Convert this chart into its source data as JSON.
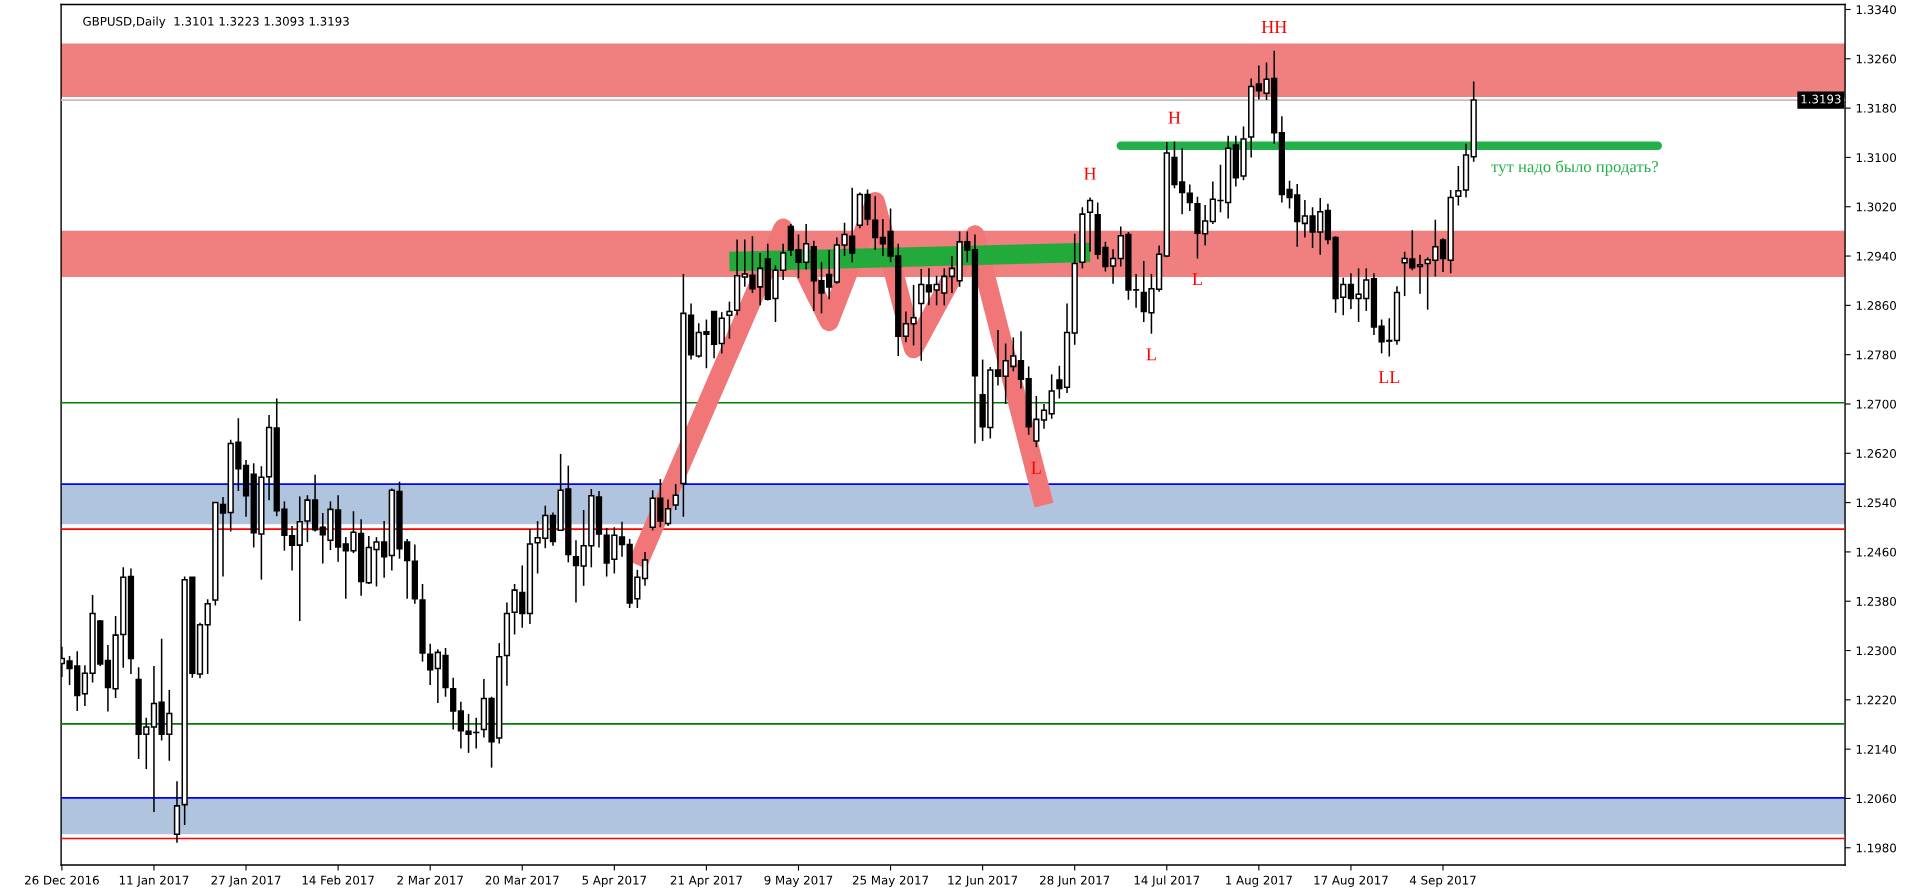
{
  "chart_data": {
    "type": "candlestick",
    "title": "GBPUSD,Daily  1.3101 1.3223 1.3093 1.3193",
    "categories": [
      "26 Dec 2016",
      null,
      null,
      null,
      null,
      null,
      null,
      null,
      null,
      null,
      null,
      null,
      "11 Jan 2017",
      null,
      null,
      null,
      null,
      null,
      null,
      null,
      null,
      null,
      null,
      null,
      "27 Jan 2017",
      null,
      null,
      null,
      null,
      null,
      null,
      null,
      null,
      null,
      null,
      null,
      "14 Feb 2017",
      null,
      null,
      null,
      null,
      null,
      null,
      null,
      null,
      null,
      null,
      null,
      "2 Mar 2017",
      null,
      null,
      null,
      null,
      null,
      null,
      null,
      null,
      null,
      null,
      null,
      "20 Mar 2017",
      null,
      null,
      null,
      null,
      null,
      null,
      null,
      null,
      null,
      null,
      null,
      "5 Apr 2017",
      null,
      null,
      null,
      null,
      null,
      null,
      null,
      null,
      null,
      null,
      null,
      "21 Apr 2017",
      null,
      null,
      null,
      null,
      null,
      null,
      null,
      null,
      null,
      null,
      null,
      "9 May 2017",
      null,
      null,
      null,
      null,
      null,
      null,
      null,
      null,
      null,
      null,
      null,
      "25 May 2017",
      null,
      null,
      null,
      null,
      null,
      null,
      null,
      null,
      null,
      null,
      null,
      "12 Jun 2017",
      null,
      null,
      null,
      null,
      null,
      null,
      null,
      null,
      null,
      null,
      null,
      "28 Jun 2017",
      null,
      null,
      null,
      null,
      null,
      null,
      null,
      null,
      null,
      null,
      null,
      "14 Jul 2017",
      null,
      null,
      null,
      null,
      null,
      null,
      null,
      null,
      null,
      null,
      null,
      "1 Aug 2017",
      null,
      null,
      null,
      null,
      null,
      null,
      null,
      null,
      null,
      null,
      null,
      "17 Aug 2017",
      null,
      null,
      null,
      null,
      null,
      null,
      null,
      null,
      null,
      null,
      null,
      "4 Sep 2017",
      null,
      null,
      null,
      null,
      null,
      null,
      null,
      null,
      null,
      null,
      null,
      null,
      null,
      null,
      null,
      null,
      null,
      null,
      null,
      null,
      null,
      null,
      null,
      null,
      null,
      null,
      null,
      null,
      null,
      null,
      null,
      null,
      null,
      null,
      null,
      null,
      null,
      null,
      null,
      null,
      null,
      null,
      null,
      null,
      null,
      null,
      null,
      null,
      null,
      null,
      null,
      null
    ],
    "ohlc": [
      [
        1.2279,
        1.2306,
        1.2257,
        1.2287
      ],
      [
        1.2283,
        1.2291,
        1.2244,
        1.2271
      ],
      [
        1.2275,
        1.2299,
        1.2202,
        1.2227
      ],
      [
        1.223,
        1.2276,
        1.221,
        1.2263
      ],
      [
        1.2263,
        1.239,
        1.2248,
        1.236
      ],
      [
        1.2348,
        1.2349,
        1.2275,
        1.2278
      ],
      [
        1.2284,
        1.2309,
        1.2201,
        1.224
      ],
      [
        1.2238,
        1.2356,
        1.2223,
        1.2325
      ],
      [
        1.2326,
        1.2435,
        1.2272,
        1.2419
      ],
      [
        1.242,
        1.2433,
        1.2262,
        1.2287
      ],
      [
        1.2253,
        1.2273,
        1.2124,
        1.2164
      ],
      [
        1.2164,
        1.2191,
        1.2108,
        1.2176
      ],
      [
        1.2176,
        1.2275,
        1.2038,
        1.2214
      ],
      [
        1.2216,
        1.2319,
        1.2154,
        1.2164
      ],
      [
        1.2164,
        1.2236,
        1.2121,
        1.2198
      ],
      [
        1.2002,
        1.2088,
        1.1988,
        1.2048
      ],
      [
        1.205,
        1.242,
        1.2017,
        1.2415
      ],
      [
        1.2419,
        1.2419,
        1.2256,
        1.2263
      ],
      [
        1.2262,
        1.2345,
        1.2255,
        1.2342
      ],
      [
        1.2342,
        1.2383,
        1.2262,
        1.2376
      ],
      [
        1.2382,
        1.254,
        1.2373,
        1.254
      ],
      [
        1.2537,
        1.2549,
        1.242,
        1.2523
      ],
      [
        1.2524,
        1.2642,
        1.2493,
        1.2636
      ],
      [
        1.2638,
        1.2677,
        1.2559,
        1.2595
      ],
      [
        1.26,
        1.2609,
        1.2517,
        1.2551
      ],
      [
        1.2586,
        1.2604,
        1.2467,
        1.2491
      ],
      [
        1.2489,
        1.2599,
        1.2415,
        1.2581
      ],
      [
        1.2582,
        1.2682,
        1.2544,
        1.2662
      ],
      [
        1.2661,
        1.2709,
        1.2518,
        1.2527
      ],
      [
        1.2529,
        1.2542,
        1.2462,
        1.2487
      ],
      [
        1.2486,
        1.2502,
        1.243,
        1.2471
      ],
      [
        1.2471,
        1.255,
        1.2348,
        1.2509
      ],
      [
        1.251,
        1.2552,
        1.2476,
        1.2544
      ],
      [
        1.2544,
        1.2585,
        1.2493,
        1.2496
      ],
      [
        1.25,
        1.2523,
        1.2441,
        1.2488
      ],
      [
        1.2479,
        1.2542,
        1.2463,
        1.2529
      ],
      [
        1.2528,
        1.2552,
        1.2444,
        1.2468
      ],
      [
        1.2473,
        1.2484,
        1.2384,
        1.2462
      ],
      [
        1.2462,
        1.2526,
        1.2458,
        1.2492
      ],
      [
        1.249,
        1.2513,
        1.2389,
        1.2412
      ],
      [
        1.241,
        1.2486,
        1.2408,
        1.2467
      ],
      [
        1.2464,
        1.2484,
        1.2404,
        1.2476
      ],
      [
        1.2476,
        1.251,
        1.2418,
        1.2452
      ],
      [
        1.2454,
        1.2563,
        1.243,
        1.256
      ],
      [
        1.2558,
        1.2574,
        1.2449,
        1.2465
      ],
      [
        1.2476,
        1.2481,
        1.2384,
        1.2446
      ],
      [
        1.2445,
        1.2472,
        1.2376,
        1.2384
      ],
      [
        1.2382,
        1.2408,
        1.2282,
        1.2296
      ],
      [
        1.2294,
        1.2311,
        1.2244,
        1.2269
      ],
      [
        1.2271,
        1.2302,
        1.2215,
        1.2297
      ],
      [
        1.2292,
        1.2304,
        1.2225,
        1.224
      ],
      [
        1.2238,
        1.2256,
        1.2172,
        1.2202
      ],
      [
        1.2202,
        1.2217,
        1.2141,
        1.217
      ],
      [
        1.2169,
        1.2197,
        1.2134,
        1.2164
      ],
      [
        1.2167,
        1.2191,
        1.2141,
        1.2167
      ],
      [
        1.2172,
        1.2254,
        1.2159,
        1.2222
      ],
      [
        1.2222,
        1.2225,
        1.211,
        1.2152
      ],
      [
        1.2158,
        1.2312,
        1.2149,
        1.229
      ],
      [
        1.2292,
        1.2378,
        1.2243,
        1.236
      ],
      [
        1.2362,
        1.2408,
        1.2326,
        1.2398
      ],
      [
        1.2394,
        1.2438,
        1.2337,
        1.236
      ],
      [
        1.236,
        1.2497,
        1.2343,
        1.2473
      ],
      [
        1.2475,
        1.251,
        1.2425,
        1.2483
      ],
      [
        1.2482,
        1.2535,
        1.2466,
        1.2519
      ],
      [
        1.2519,
        1.2524,
        1.247,
        1.2477
      ],
      [
        1.2495,
        1.2619,
        1.2494,
        1.256
      ],
      [
        1.2562,
        1.26,
        1.2443,
        1.2456
      ],
      [
        1.2452,
        1.2479,
        1.2378,
        1.2438
      ],
      [
        1.2437,
        1.2528,
        1.2405,
        1.247
      ],
      [
        1.247,
        1.2562,
        1.2435,
        1.2551
      ],
      [
        1.2549,
        1.2559,
        1.2467,
        1.2489
      ],
      [
        1.2487,
        1.2499,
        1.242,
        1.2442
      ],
      [
        1.2448,
        1.25,
        1.2425,
        1.2487
      ],
      [
        1.2484,
        1.2509,
        1.2452,
        1.2472
      ],
      [
        1.2472,
        1.2481,
        1.2369,
        1.2377
      ],
      [
        1.2384,
        1.2431,
        1.2369,
        1.2419
      ],
      [
        1.2417,
        1.246,
        1.2405,
        1.2447
      ],
      [
        1.25,
        1.256,
        1.2495,
        1.2547
      ],
      [
        1.2547,
        1.2578,
        1.25,
        1.251
      ],
      [
        1.2506,
        1.2545,
        1.2502,
        1.253
      ],
      [
        1.2536,
        1.257,
        1.2528,
        1.2552
      ],
      [
        1.2571,
        1.2911,
        1.2517,
        1.2847
      ],
      [
        1.2844,
        1.2863,
        1.2772,
        1.278
      ],
      [
        1.2778,
        1.2831,
        1.2775,
        1.2816
      ],
      [
        1.2817,
        1.2837,
        1.2758,
        1.2813
      ],
      [
        1.285,
        1.285,
        1.2774,
        1.2797
      ],
      [
        1.2798,
        1.2849,
        1.2782,
        1.2839
      ],
      [
        1.2844,
        1.2866,
        1.2806,
        1.285
      ],
      [
        1.2852,
        1.2967,
        1.2844,
        1.2908
      ],
      [
        1.2906,
        1.2967,
        1.289,
        1.2911
      ],
      [
        1.2909,
        1.2972,
        1.288,
        1.2887
      ],
      [
        1.289,
        1.2945,
        1.286,
        1.292
      ],
      [
        1.2935,
        1.296,
        1.2868,
        1.287
      ],
      [
        1.2871,
        1.2925,
        1.2833,
        1.2917
      ],
      [
        1.2917,
        1.296,
        1.2901,
        1.2945
      ],
      [
        1.2988,
        1.2992,
        1.294,
        1.295
      ],
      [
        1.295,
        1.2975,
        1.2904,
        1.293
      ],
      [
        1.293,
        1.2992,
        1.2918,
        1.296
      ],
      [
        1.2955,
        1.2965,
        1.2851,
        1.29
      ],
      [
        1.29,
        1.293,
        1.2847,
        1.288
      ],
      [
        1.291,
        1.295,
        1.287,
        1.289
      ],
      [
        1.2898,
        1.297,
        1.2895,
        1.2958
      ],
      [
        1.2958,
        1.2994,
        1.294,
        1.2975
      ],
      [
        1.2972,
        1.3051,
        1.293,
        1.2945
      ],
      [
        1.299,
        1.3043,
        1.2985,
        1.304
      ],
      [
        1.304,
        1.3048,
        1.299,
        1.3
      ],
      [
        1.2998,
        1.3037,
        1.295,
        1.297
      ],
      [
        1.297,
        1.3,
        1.294,
        1.296
      ],
      [
        1.298,
        1.3017,
        1.293,
        1.294
      ],
      [
        1.294,
        1.296,
        1.2778,
        1.281
      ],
      [
        1.281,
        1.285,
        1.28,
        1.283
      ],
      [
        1.283,
        1.2893,
        1.2795,
        1.284
      ],
      [
        1.2863,
        1.2919,
        1.277,
        1.2894
      ],
      [
        1.2893,
        1.292,
        1.286,
        1.2882
      ],
      [
        1.2885,
        1.2908,
        1.286,
        1.2894
      ],
      [
        1.288,
        1.292,
        1.286,
        1.2907
      ],
      [
        1.2907,
        1.294,
        1.288,
        1.292
      ],
      [
        1.29,
        1.298,
        1.289,
        1.2963
      ],
      [
        1.2963,
        1.298,
        1.293,
        1.295
      ],
      [
        1.295,
        1.2975,
        1.2636,
        1.2746
      ],
      [
        1.2715,
        1.2772,
        1.264,
        1.2663
      ],
      [
        1.2662,
        1.276,
        1.2644,
        1.2755
      ],
      [
        1.2755,
        1.282,
        1.273,
        1.2745
      ],
      [
        1.2745,
        1.2798,
        1.27,
        1.277
      ],
      [
        1.2761,
        1.2808,
        1.2753,
        1.2778
      ],
      [
        1.277,
        1.2818,
        1.2725,
        1.274
      ],
      [
        1.2741,
        1.2761,
        1.265,
        1.2663
      ],
      [
        1.264,
        1.2713,
        1.263,
        1.2675
      ],
      [
        1.2674,
        1.27,
        1.266,
        1.269
      ],
      [
        1.2684,
        1.2748,
        1.2676,
        1.2721
      ],
      [
        1.2739,
        1.2762,
        1.2709,
        1.2725
      ],
      [
        1.2727,
        1.2863,
        1.2718,
        1.2816
      ],
      [
        1.2815,
        1.2976,
        1.2796,
        1.2928
      ],
      [
        1.293,
        1.3019,
        1.292,
        1.3008
      ],
      [
        1.3011,
        1.3035,
        1.2947,
        1.303
      ],
      [
        1.3007,
        1.3027,
        1.2935,
        1.2943
      ],
      [
        1.2954,
        1.2963,
        1.2915,
        1.2923
      ],
      [
        1.2924,
        1.2951,
        1.2895,
        1.2936
      ],
      [
        1.2936,
        1.2988,
        1.2923,
        1.2973
      ],
      [
        1.2975,
        1.2979,
        1.2869,
        1.2885
      ],
      [
        1.2885,
        1.2911,
        1.2856,
        1.2885
      ],
      [
        1.2881,
        1.2932,
        1.2833,
        1.285
      ],
      [
        1.2848,
        1.2911,
        1.2814,
        1.2887
      ],
      [
        1.2886,
        1.2957,
        1.2882,
        1.2943
      ],
      [
        1.294,
        1.3125,
        1.2938,
        1.3107
      ],
      [
        1.31,
        1.3126,
        1.305,
        1.3056
      ],
      [
        1.306,
        1.3115,
        1.3008,
        1.3043
      ],
      [
        1.3042,
        1.3056,
        1.3013,
        1.3027
      ],
      [
        1.3025,
        1.3036,
        1.2936,
        1.2977
      ],
      [
        1.2976,
        1.3023,
        1.2957,
        1.2997
      ],
      [
        1.2996,
        1.3061,
        1.2992,
        1.3032
      ],
      [
        1.303,
        1.3088,
        1.3011,
        1.303
      ],
      [
        1.3027,
        1.3135,
        1.3001,
        1.3115
      ],
      [
        1.312,
        1.3135,
        1.3053,
        1.3067
      ],
      [
        1.307,
        1.315,
        1.3063,
        1.313
      ],
      [
        1.3133,
        1.3228,
        1.31,
        1.3215
      ],
      [
        1.3219,
        1.3249,
        1.3194,
        1.3208
      ],
      [
        1.3204,
        1.3254,
        1.3193,
        1.3227
      ],
      [
        1.3228,
        1.3273,
        1.3122,
        1.314
      ],
      [
        1.314,
        1.3167,
        1.3027,
        1.304
      ],
      [
        1.3048,
        1.3062,
        1.3017,
        1.3035
      ],
      [
        1.3039,
        1.3057,
        1.2955,
        1.2996
      ],
      [
        1.2993,
        1.3031,
        1.297,
        1.3005
      ],
      [
        1.3005,
        1.3019,
        1.2953,
        1.2979
      ],
      [
        1.2979,
        1.3034,
        1.2942,
        1.3012
      ],
      [
        1.3014,
        1.3025,
        1.2959,
        1.2967
      ],
      [
        1.297,
        1.2972,
        1.2848,
        1.2871
      ],
      [
        1.2873,
        1.2905,
        1.2844,
        1.2894
      ],
      [
        1.2894,
        1.2912,
        1.2854,
        1.2871
      ],
      [
        1.2871,
        1.292,
        1.2833,
        1.2878
      ],
      [
        1.2871,
        1.292,
        1.2851,
        1.2901
      ],
      [
        1.2903,
        1.2912,
        1.2812,
        1.2825
      ],
      [
        1.2826,
        1.2837,
        1.2782,
        1.2801
      ],
      [
        1.2802,
        1.2839,
        1.2777,
        1.2803
      ],
      [
        1.2803,
        1.2891,
        1.2796,
        1.2881
      ],
      [
        1.2929,
        1.2947,
        1.2875,
        1.2936
      ],
      [
        1.2935,
        1.2982,
        1.2917,
        1.2921
      ],
      [
        1.2923,
        1.2942,
        1.2879,
        1.2926
      ],
      [
        1.2928,
        1.2938,
        1.2853,
        1.2934
      ],
      [
        1.2933,
        1.2999,
        1.2907,
        1.2955
      ],
      [
        1.2966,
        1.2969,
        1.2914,
        1.2936
      ],
      [
        1.2933,
        1.3047,
        1.2912,
        1.3035
      ],
      [
        1.3037,
        1.3086,
        1.3022,
        1.3046
      ],
      [
        1.3047,
        1.3122,
        1.3035,
        1.3104
      ],
      [
        1.3101,
        1.3223,
        1.3093,
        1.3193
      ],
      null,
      null,
      null,
      null,
      null,
      null,
      null,
      null,
      null,
      null,
      null,
      null,
      null,
      null,
      null,
      null,
      null,
      null,
      null,
      null,
      null,
      null,
      null,
      null,
      null,
      null,
      null,
      null,
      null,
      null,
      null,
      null,
      null,
      null,
      null,
      null,
      null,
      null,
      null,
      null,
      null,
      null,
      null,
      null,
      null,
      null,
      null,
      null
    ],
    "color": "#000000",
    "bands": [
      {
        "axis": "y",
        "from": 1.3198,
        "to": 1.3285,
        "color": "#f08080"
      },
      {
        "axis": "y",
        "from": 1.2906,
        "to": 1.2981,
        "color": "#f08080"
      },
      {
        "axis": "y",
        "from": 1.2505,
        "to": 1.257,
        "color": "#b0c4de"
      },
      {
        "axis": "y",
        "from": 1.2002,
        "to": 1.2061,
        "color": "#b0c4de"
      }
    ],
    "series": [
      {
        "type": "line",
        "color": "#f07678",
        "values": [
          null,
          null,
          null,
          null,
          null,
          null,
          null,
          null,
          null,
          null,
          null,
          null,
          null,
          null,
          null,
          null,
          null,
          null,
          null,
          null,
          null,
          null,
          null,
          null,
          null,
          null,
          null,
          null,
          null,
          null,
          null,
          null,
          null,
          null,
          null,
          null,
          null,
          null,
          null,
          null,
          null,
          null,
          null,
          null,
          null,
          null,
          null,
          null,
          null,
          null,
          null,
          null,
          null,
          null,
          null,
          null,
          null,
          null,
          null,
          null,
          null,
          null,
          null,
          null,
          null,
          null,
          null,
          null,
          null,
          null,
          null,
          null,
          null,
          null,
          null,
          1.2439,
          null,
          null,
          null,
          null,
          null,
          null,
          null,
          null,
          null,
          null,
          null,
          null,
          null,
          null,
          null,
          null,
          null,
          null,
          1.2985,
          null,
          null,
          null,
          null,
          null,
          1.2834,
          null,
          null,
          null,
          null,
          null,
          1.3028,
          null,
          null,
          null,
          null,
          1.279,
          null,
          null,
          null,
          null,
          null,
          null,
          null,
          1.2974,
          null,
          null,
          null,
          null,
          null,
          null,
          null,
          null,
          1.2536,
          null,
          null,
          null,
          null,
          null,
          null,
          null,
          null,
          null,
          null,
          null,
          null,
          null,
          null,
          null,
          null,
          null,
          null,
          null,
          null,
          null,
          null,
          null,
          null,
          null,
          null,
          null,
          null,
          null,
          null,
          null,
          null,
          null,
          null,
          null,
          null,
          null,
          null,
          null,
          null,
          null,
          null,
          null,
          null,
          null,
          null,
          null,
          null,
          null,
          null,
          null,
          null,
          null,
          null,
          null,
          null,
          null,
          null,
          null,
          null,
          null,
          null,
          null,
          null,
          null,
          null,
          null,
          null,
          null,
          null,
          null,
          null,
          null,
          null,
          null,
          null,
          null,
          null,
          null,
          null,
          null,
          null,
          null,
          null,
          null,
          null,
          null,
          null,
          null,
          null,
          null,
          null,
          null,
          null,
          null,
          null,
          null,
          null,
          null,
          null,
          null,
          null,
          null,
          null
        ]
      },
      {
        "type": "line",
        "color": "#22aa3a",
        "values": [
          null,
          null,
          null,
          null,
          null,
          null,
          null,
          null,
          null,
          null,
          null,
          null,
          null,
          null,
          null,
          null,
          null,
          null,
          null,
          null,
          null,
          null,
          null,
          null,
          null,
          null,
          null,
          null,
          null,
          null,
          null,
          null,
          null,
          null,
          null,
          null,
          null,
          null,
          null,
          null,
          null,
          null,
          null,
          null,
          null,
          null,
          null,
          null,
          null,
          null,
          null,
          null,
          null,
          null,
          null,
          null,
          null,
          null,
          null,
          null,
          null,
          null,
          null,
          null,
          null,
          null,
          null,
          null,
          null,
          null,
          null,
          null,
          null,
          null,
          null,
          null,
          null,
          null,
          null,
          null,
          null,
          null,
          null,
          null,
          null,
          null,
          null,
          1.2931,
          null,
          null,
          null,
          null,
          null,
          null,
          null,
          null,
          null,
          null,
          null,
          null,
          null,
          null,
          null,
          null,
          null,
          null,
          null,
          null,
          null,
          null,
          null,
          null,
          null,
          null,
          null,
          null,
          null,
          null,
          null,
          null,
          null,
          null,
          null,
          null,
          null,
          null,
          null,
          null,
          null,
          null,
          null,
          null,
          null,
          null,
          1.2946,
          null,
          null,
          null,
          null,
          null,
          null,
          null,
          null,
          null,
          null,
          null,
          null,
          null,
          null,
          null,
          null,
          null,
          null,
          null,
          null,
          null,
          null,
          null,
          null,
          null,
          null,
          null,
          null,
          null,
          null,
          null,
          null,
          null,
          null,
          null,
          null,
          null,
          null,
          null,
          null,
          null,
          null,
          null,
          null,
          null,
          null,
          null,
          null,
          null,
          null,
          null,
          null,
          null,
          null,
          null,
          null,
          null,
          null,
          null,
          null,
          null,
          null,
          null,
          null,
          null,
          null,
          null,
          null,
          null,
          null,
          null,
          null,
          null,
          null,
          null,
          null,
          null,
          null,
          null,
          null,
          null,
          null,
          null,
          null,
          null,
          null,
          null,
          null,
          null,
          null,
          null,
          null,
          null,
          null,
          null,
          null,
          null,
          null
        ]
      },
      {
        "type": "step",
        "name": "тут надо было продать?",
        "color": "#22b04a",
        "values": [
          null,
          null,
          null,
          null,
          null,
          null,
          null,
          null,
          null,
          null,
          null,
          null,
          null,
          null,
          null,
          null,
          null,
          null,
          null,
          null,
          null,
          null,
          null,
          null,
          null,
          null,
          null,
          null,
          null,
          null,
          null,
          null,
          null,
          null,
          null,
          null,
          null,
          null,
          null,
          null,
          null,
          null,
          null,
          null,
          null,
          null,
          null,
          null,
          null,
          null,
          null,
          null,
          null,
          null,
          null,
          null,
          null,
          null,
          null,
          null,
          null,
          null,
          null,
          null,
          null,
          null,
          null,
          null,
          null,
          null,
          null,
          null,
          null,
          null,
          null,
          null,
          null,
          null,
          null,
          null,
          null,
          null,
          null,
          null,
          null,
          null,
          null,
          null,
          null,
          null,
          null,
          null,
          null,
          null,
          null,
          null,
          null,
          null,
          null,
          null,
          null,
          null,
          null,
          null,
          null,
          null,
          null,
          null,
          null,
          null,
          null,
          null,
          null,
          null,
          null,
          null,
          null,
          null,
          null,
          null,
          null,
          null,
          null,
          null,
          null,
          null,
          null,
          null,
          null,
          null,
          null,
          null,
          null,
          null,
          null,
          null,
          null,
          null,
          1.3119,
          null,
          null,
          null,
          null,
          null,
          null,
          null,
          null,
          null,
          null,
          null,
          null,
          null,
          null,
          null,
          null,
          null,
          null,
          null,
          null,
          null,
          null,
          null,
          null,
          null,
          null,
          null,
          null,
          null,
          null,
          null,
          null,
          null,
          null,
          null,
          null,
          null,
          null,
          null,
          null,
          null,
          null,
          null,
          null,
          null,
          null,
          null,
          null,
          null,
          null,
          null,
          null,
          null,
          null,
          null,
          null,
          null,
          null,
          null,
          null,
          null,
          null,
          null,
          null,
          null,
          null,
          null,
          null,
          null,
          1.3119,
          null,
          null,
          null,
          null,
          null,
          null,
          null,
          null,
          null,
          null,
          null,
          null,
          null,
          null,
          null,
          null,
          null,
          null,
          null,
          null,
          null,
          null,
          null,
          null
        ]
      }
    ],
    "ref_lines": [
      {
        "axis": "y",
        "value": 1.3193,
        "label": "1.3193",
        "color": "#c0c0c0"
      },
      {
        "axis": "y",
        "value": 1.2702,
        "color": "#008000"
      },
      {
        "axis": "y",
        "value": 1.2181,
        "color": "#008000"
      },
      {
        "axis": "y",
        "value": 1.257,
        "color": "#0000ff"
      },
      {
        "axis": "y",
        "value": 1.2061,
        "color": "#0000ff"
      },
      {
        "axis": "y",
        "value": 1.2497,
        "color": "#ff0000"
      },
      {
        "axis": "y",
        "value": 1.1995,
        "color": "#ff0000"
      }
    ],
    "annotations": [
      {
        "text": "HH",
        "y": 1.3273
      },
      {
        "text": "H",
        "y": 1.3035
      },
      {
        "text": "H",
        "y": 1.3126
      },
      {
        "text": "L",
        "y": 1.2814
      },
      {
        "text": "L",
        "y": 1.2936
      },
      {
        "text": "L",
        "y": 1.263
      },
      {
        "text": "LL",
        "y": 1.2777
      }
    ],
    "ylim": [
      1.1952,
      1.3348
    ],
    "yticks": [
      {
        "value": 1.198,
        "label": "1.1980"
      },
      {
        "value": 1.206,
        "label": "1.2060"
      },
      {
        "value": 1.214,
        "label": "1.2140"
      },
      {
        "value": 1.222,
        "label": "1.2220"
      },
      {
        "value": 1.23,
        "label": "1.2300"
      },
      {
        "value": 1.238,
        "label": "1.2380"
      },
      {
        "value": 1.246,
        "label": "1.2460"
      },
      {
        "value": 1.254,
        "label": "1.2540"
      },
      {
        "value": 1.262,
        "label": "1.2620"
      },
      {
        "value": 1.27,
        "label": "1.2700"
      },
      {
        "value": 1.278,
        "label": "1.2780"
      },
      {
        "value": 1.286,
        "label": "1.2860"
      },
      {
        "value": 1.294,
        "label": "1.2940"
      },
      {
        "value": 1.302,
        "label": "1.3020"
      },
      {
        "value": 1.31,
        "label": "1.3100"
      },
      {
        "value": 1.318,
        "label": "1.3180"
      },
      {
        "value": 1.326,
        "label": "1.3260"
      },
      {
        "value": 1.334,
        "label": "1.3340"
      }
    ],
    "grid": false,
    "legend": false
  }
}
